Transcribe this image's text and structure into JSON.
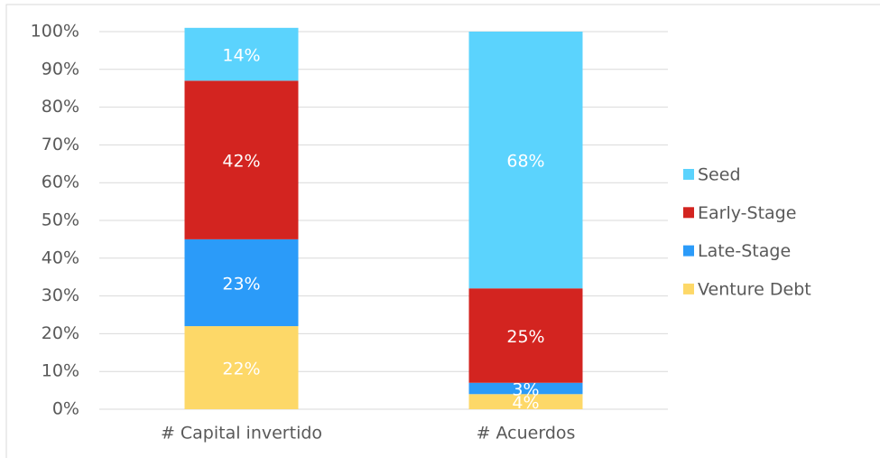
{
  "chart_data": {
    "type": "stacked_bar",
    "categories": [
      "# Capital invertido",
      "# Acuerdos"
    ],
    "series": [
      {
        "name": "Venture Debt",
        "color": "#fdd868",
        "values": [
          22,
          4
        ],
        "value_labels": [
          "22%",
          "4%"
        ]
      },
      {
        "name": "Late-Stage",
        "color": "#2b9bf9",
        "values": [
          23,
          3
        ],
        "value_labels": [
          "23%",
          "3%"
        ]
      },
      {
        "name": "Early-Stage",
        "color": "#d32420",
        "values": [
          42,
          25
        ],
        "value_labels": [
          "42%",
          "25%"
        ]
      },
      {
        "name": "Seed",
        "color": "#5bd3fd",
        "values": [
          14,
          68
        ],
        "value_labels": [
          "14%",
          "68%"
        ]
      }
    ],
    "ylim": [
      0,
      100
    ],
    "yticks": [
      {
        "value": 0,
        "label": "0%"
      },
      {
        "value": 10,
        "label": "10%"
      },
      {
        "value": 20,
        "label": "20%"
      },
      {
        "value": 30,
        "label": "30%"
      },
      {
        "value": 40,
        "label": "40%"
      },
      {
        "value": 50,
        "label": "50%"
      },
      {
        "value": 60,
        "label": "60%"
      },
      {
        "value": 70,
        "label": "70%"
      },
      {
        "value": 80,
        "label": "80%"
      },
      {
        "value": 90,
        "label": "90%"
      },
      {
        "value": 100,
        "label": "100%"
      }
    ],
    "grid": true,
    "legend": "right"
  }
}
